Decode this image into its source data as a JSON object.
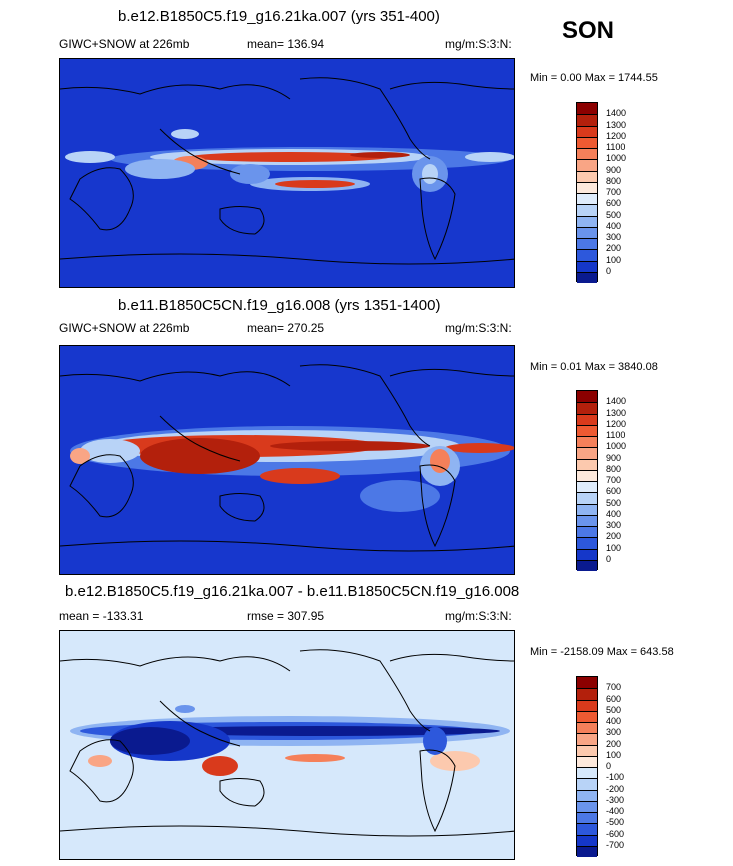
{
  "season": "SON",
  "panels": [
    {
      "title": "b.e12.B1850C5.f19_g16.21ka.007 (yrs 351-400)",
      "left_label": "GIWC+SNOW at 226mb",
      "center_label": "mean= 136.94",
      "units": "mg/m:S:3:N:",
      "minmax": "Min =   0.00 Max = 1744.55",
      "colorbar_labels": [
        "1400",
        "1300",
        "1200",
        "1100",
        "1000",
        "900",
        "800",
        "700",
        "600",
        "500",
        "400",
        "300",
        "200",
        "100",
        "0"
      ],
      "colorbar_colors": [
        "#8b0000",
        "#b3200c",
        "#d93a1c",
        "#ee5a32",
        "#f5805a",
        "#f9a585",
        "#fcc9ae",
        "#fde9dc",
        "#dfecfb",
        "#b8d3f7",
        "#8fb4f2",
        "#6a94ec",
        "#4c78e6",
        "#2d58dc",
        "#1537c9",
        "#0a1a8f"
      ],
      "background": "#1737cd"
    },
    {
      "title": "b.e11.B1850C5CN.f19_g16.008 (yrs 1351-1400)",
      "left_label": "GIWC+SNOW at 226mb",
      "center_label": "mean= 270.25",
      "units": "mg/m:S:3:N:",
      "minmax": "Min =   0.01 Max = 3840.08",
      "colorbar_labels": [
        "1400",
        "1300",
        "1200",
        "1100",
        "1000",
        "900",
        "800",
        "700",
        "600",
        "500",
        "400",
        "300",
        "200",
        "100",
        "0"
      ],
      "colorbar_colors": [
        "#8b0000",
        "#b3200c",
        "#d93a1c",
        "#ee5a32",
        "#f5805a",
        "#f9a585",
        "#fcc9ae",
        "#fde9dc",
        "#dfecfb",
        "#b8d3f7",
        "#8fb4f2",
        "#6a94ec",
        "#4c78e6",
        "#2d58dc",
        "#1537c9",
        "#0a1a8f"
      ],
      "background": "#1737cd"
    },
    {
      "title": "b.e12.B1850C5.f19_g16.21ka.007 - b.e11.B1850C5CN.f19_g16.008",
      "left_label": "mean = -133.31",
      "center_label": "rmse = 307.95",
      "units": "mg/m:S:3:N:",
      "minmax": "Min = -2158.09 Max = 643.58",
      "colorbar_labels": [
        "700",
        "600",
        "500",
        "400",
        "300",
        "200",
        "100",
        "0",
        "-100",
        "-200",
        "-300",
        "-400",
        "-500",
        "-600",
        "-700"
      ],
      "colorbar_colors": [
        "#8b0000",
        "#b3200c",
        "#d93a1c",
        "#ee5a32",
        "#f5805a",
        "#f9a585",
        "#fcc9ae",
        "#fde9dc",
        "#d6e8fb",
        "#b8d3f7",
        "#8fb4f2",
        "#6a94ec",
        "#4c78e6",
        "#2d58dc",
        "#1537c9",
        "#0a1a8f"
      ],
      "background": "#d6e8fb"
    }
  ]
}
